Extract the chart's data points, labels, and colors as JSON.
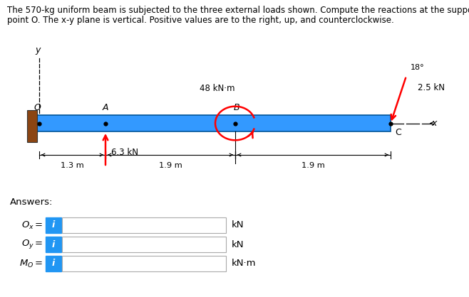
{
  "title_line1": "The 570-kg uniform beam is subjected to the three external loads shown. Compute the reactions at the support",
  "title_line2": "point O. The x-y plane is vertical. Positive values are to the right, up, and counterclockwise.",
  "bg_color": "#ffffff",
  "beam_color": "#3399FF",
  "wall_color": "#8B4513",
  "answers_label": "Answers:",
  "input_box_color": "#2196F3",
  "input_box_text_color": "#ffffff",
  "unit_kN": "kN",
  "unit_kNm": "kN·m",
  "label_color": "#c0392b",
  "text_color": "#333333",
  "dim_color": "#222222"
}
